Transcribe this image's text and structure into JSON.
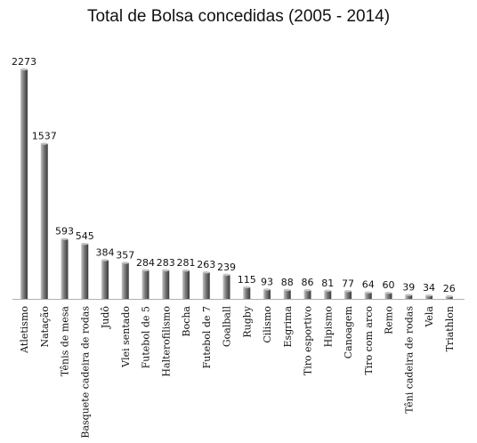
{
  "chart_data": {
    "type": "bar",
    "title": "Total de Bolsa concedidas (2005 - 2014)",
    "xlabel": "",
    "ylabel": "",
    "ylim": [
      0,
      2300
    ],
    "grid": false,
    "legend": "none",
    "categories": [
      "Atletismo",
      "Natação",
      "Tênis de mesa",
      "Basquete cadeira de rodas",
      "Judô",
      "Vlei sentado",
      "Futebol de 5",
      "Halterofilismo",
      "Bocha",
      "Futebol de 7",
      "Goalball",
      "Rugby",
      "Cilismo",
      "Esgrima",
      "Tiro esportivo",
      "Hipismo",
      "Canoagem",
      "Tiro com arco",
      "Remo",
      "Têni cadeira de rodas",
      "Vela",
      "Triathlon"
    ],
    "values": [
      2273,
      1537,
      593,
      545,
      384,
      357,
      284,
      283,
      281,
      263,
      239,
      115,
      93,
      88,
      86,
      81,
      77,
      64,
      60,
      39,
      34,
      26
    ],
    "colors": {
      "bar_light": "#c4c4c4",
      "bar_mid": "#7a7a7a",
      "bar_dark": "#3a3a3a",
      "axis": "#b0b0b0"
    }
  }
}
